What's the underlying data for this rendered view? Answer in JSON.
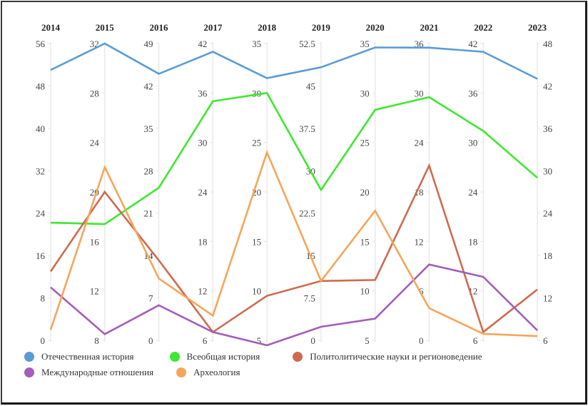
{
  "chart_data": {
    "type": "parallel-coordinates",
    "title": "",
    "axes": [
      {
        "label": "2014",
        "range": [
          0,
          56
        ],
        "ticks": [
          0,
          8,
          16,
          24,
          32,
          40,
          48,
          56
        ]
      },
      {
        "label": "2015",
        "range": [
          8,
          32
        ],
        "ticks": [
          8,
          12,
          16,
          20,
          24,
          28,
          32
        ]
      },
      {
        "label": "2016",
        "range": [
          0,
          49
        ],
        "ticks": [
          0,
          7,
          14,
          21,
          28,
          35,
          42,
          49
        ]
      },
      {
        "label": "2017",
        "range": [
          6,
          42
        ],
        "ticks": [
          6,
          12,
          18,
          24,
          30,
          36,
          42
        ]
      },
      {
        "label": "2018",
        "range": [
          5,
          35
        ],
        "ticks": [
          5,
          10,
          15,
          20,
          25,
          30,
          35
        ]
      },
      {
        "label": "2019",
        "range": [
          0,
          52.5
        ],
        "ticks": [
          0,
          7.5,
          15,
          22.5,
          30,
          37.5,
          45,
          52.5
        ]
      },
      {
        "label": "2020",
        "range": [
          5,
          35
        ],
        "ticks": [
          5,
          10,
          15,
          20,
          25,
          30,
          35
        ]
      },
      {
        "label": "2021",
        "range": [
          0,
          36
        ],
        "ticks": [
          0,
          6,
          12,
          18,
          24,
          30,
          36
        ]
      },
      {
        "label": "2022",
        "range": [
          6,
          42
        ],
        "ticks": [
          6,
          12,
          18,
          24,
          30,
          36,
          42
        ]
      },
      {
        "label": "2023",
        "range": [
          6,
          48
        ],
        "ticks": [
          6,
          12,
          18,
          24,
          30,
          36,
          42,
          48
        ]
      }
    ],
    "series": [
      {
        "name": "Отечественная история",
        "color": "#5b9bd5",
        "values": [
          51,
          32,
          44,
          41,
          31.5,
          48.3,
          34.6,
          35.5,
          41,
          43
        ]
      },
      {
        "name": "Всеобщая история",
        "color": "#3ee82e",
        "values": [
          22.2,
          17.4,
          25.2,
          35,
          30,
          26.6,
          28.3,
          29.5,
          31.4,
          29
        ]
      },
      {
        "name": "Политолитические науки и регионоведение",
        "color": "#cd6b50",
        "values": [
          13,
          20,
          13.2,
          7,
          9.5,
          10.5,
          11.1,
          21.2,
          7,
          13.2
        ]
      },
      {
        "name": "Международные отношения",
        "color": "#a45db8",
        "values": [
          10,
          8.5,
          5.8,
          7,
          4.5,
          2.4,
          7.2,
          9.2,
          13.7,
          7.4
        ]
      },
      {
        "name": "Археология",
        "color": "#f4a65a",
        "values": [
          2,
          22,
          10.2,
          9,
          24,
          10.5,
          18.1,
          3.9,
          6.8,
          6.6
        ]
      }
    ],
    "legend_position": "bottom-left",
    "grid": false
  }
}
